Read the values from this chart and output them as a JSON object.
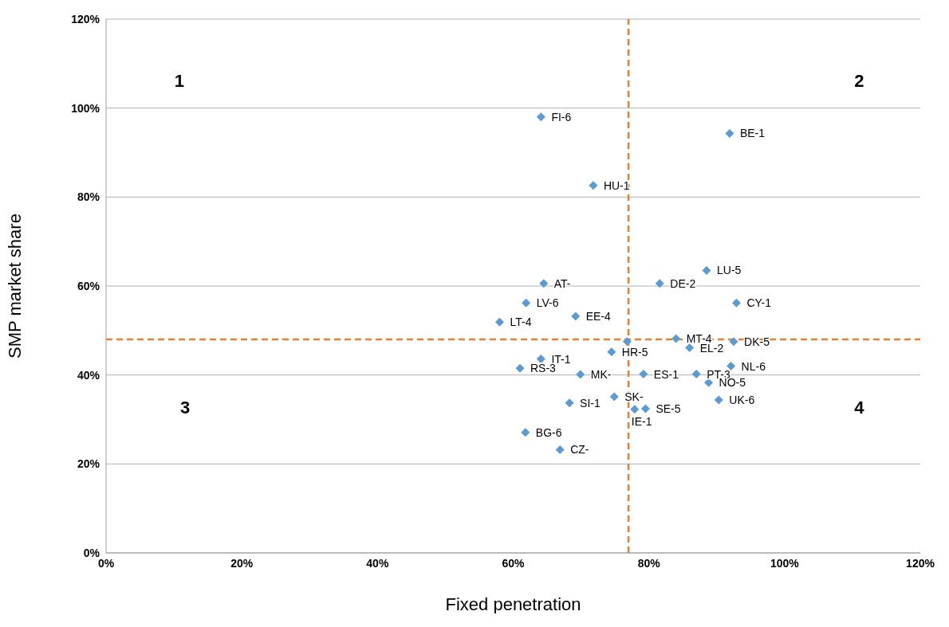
{
  "chart_data": {
    "type": "scatter",
    "xlabel": "Fixed penetration",
    "ylabel": "SMP market share",
    "annotations": [
      "1",
      "2",
      "3",
      "4"
    ],
    "x": [
      64.1,
      91.9,
      71.8,
      88.5,
      64.5,
      81.6,
      92.9,
      61.9,
      69.2,
      58.0,
      84.0,
      92.5,
      76.8,
      86.0,
      74.5,
      64.1,
      92.1,
      61.0,
      69.9,
      79.2,
      87.0,
      88.8,
      74.9,
      90.3,
      68.3,
      79.5,
      77.9,
      61.8,
      66.9
    ],
    "values": [
      98.0,
      94.3,
      82.6,
      63.5,
      60.6,
      60.6,
      56.2,
      56.2,
      53.2,
      51.9,
      48.2,
      47.5,
      47.5,
      46.1,
      45.2,
      43.6,
      42.0,
      41.5,
      40.1,
      40.2,
      40.2,
      38.3,
      35.1,
      34.4,
      33.7,
      32.4,
      32.3,
      27.1,
      23.2
    ],
    "value_labels": [
      "FI-6",
      "BE-1",
      "HU-1",
      "LU-5",
      "AT-",
      "DE-2",
      "CY-1",
      "LV-6",
      "EE-4",
      "LT-4",
      "MT-4",
      "DK-5",
      null,
      "EL-2",
      "HR-5",
      "IT-1",
      "NL-6",
      "RS-3",
      "MK-",
      "ES-1",
      "PT-3",
      "NO-5",
      "SK-",
      "UK-6",
      "SI-1",
      "SE-5",
      "IE-1",
      "BG-6",
      "CZ-"
    ],
    "color": "#5b9bd5",
    "marker": "diamond",
    "xlim": [
      0,
      120
    ],
    "ylim": [
      0,
      120
    ],
    "xticks": [
      {
        "value": 0,
        "label": "0%"
      },
      {
        "value": 20,
        "label": "20%"
      },
      {
        "value": 40,
        "label": "40%"
      },
      {
        "value": 60,
        "label": "60%"
      },
      {
        "value": 80,
        "label": "80%"
      },
      {
        "value": 100,
        "label": "100%"
      },
      {
        "value": 120,
        "label": "120%"
      }
    ],
    "yticks": [
      {
        "value": 0,
        "label": "0%"
      },
      {
        "value": 20,
        "label": "20%"
      },
      {
        "value": 40,
        "label": "40%"
      },
      {
        "value": 60,
        "label": "60%"
      },
      {
        "value": 80,
        "label": "80%"
      },
      {
        "value": 100,
        "label": "100%"
      },
      {
        "value": 120,
        "label": "120%"
      }
    ],
    "grid": "y",
    "ref_lines": [
      {
        "axis": "x",
        "value": 77,
        "color": "#ed7d31",
        "line_style": "dashed"
      },
      {
        "axis": "y",
        "value": 48,
        "color": "#ed7d31",
        "line_style": "dashed"
      }
    ]
  }
}
